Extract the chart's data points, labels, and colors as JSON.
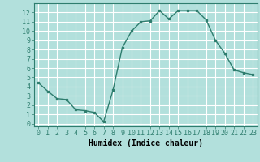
{
  "x": [
    0,
    1,
    2,
    3,
    4,
    5,
    6,
    7,
    8,
    9,
    10,
    11,
    12,
    13,
    14,
    15,
    16,
    17,
    18,
    19,
    20,
    21,
    22,
    23
  ],
  "y": [
    4.4,
    3.5,
    2.7,
    2.6,
    1.5,
    1.4,
    1.2,
    0.2,
    3.6,
    8.2,
    10.0,
    11.0,
    11.1,
    12.2,
    11.3,
    12.2,
    12.2,
    12.2,
    11.2,
    9.0,
    7.6,
    5.8,
    5.5,
    5.3
  ],
  "line_color": "#2e7d6e",
  "bg_color": "#b2e0dc",
  "grid_color": "#ffffff",
  "xlabel": "Humidex (Indice chaleur)",
  "ylabel_ticks": [
    0,
    1,
    2,
    3,
    4,
    5,
    6,
    7,
    8,
    9,
    10,
    11,
    12
  ],
  "xlim": [
    -0.5,
    23.5
  ],
  "ylim": [
    -0.3,
    13.0
  ],
  "xlabel_fontsize": 7,
  "tick_fontsize": 6
}
